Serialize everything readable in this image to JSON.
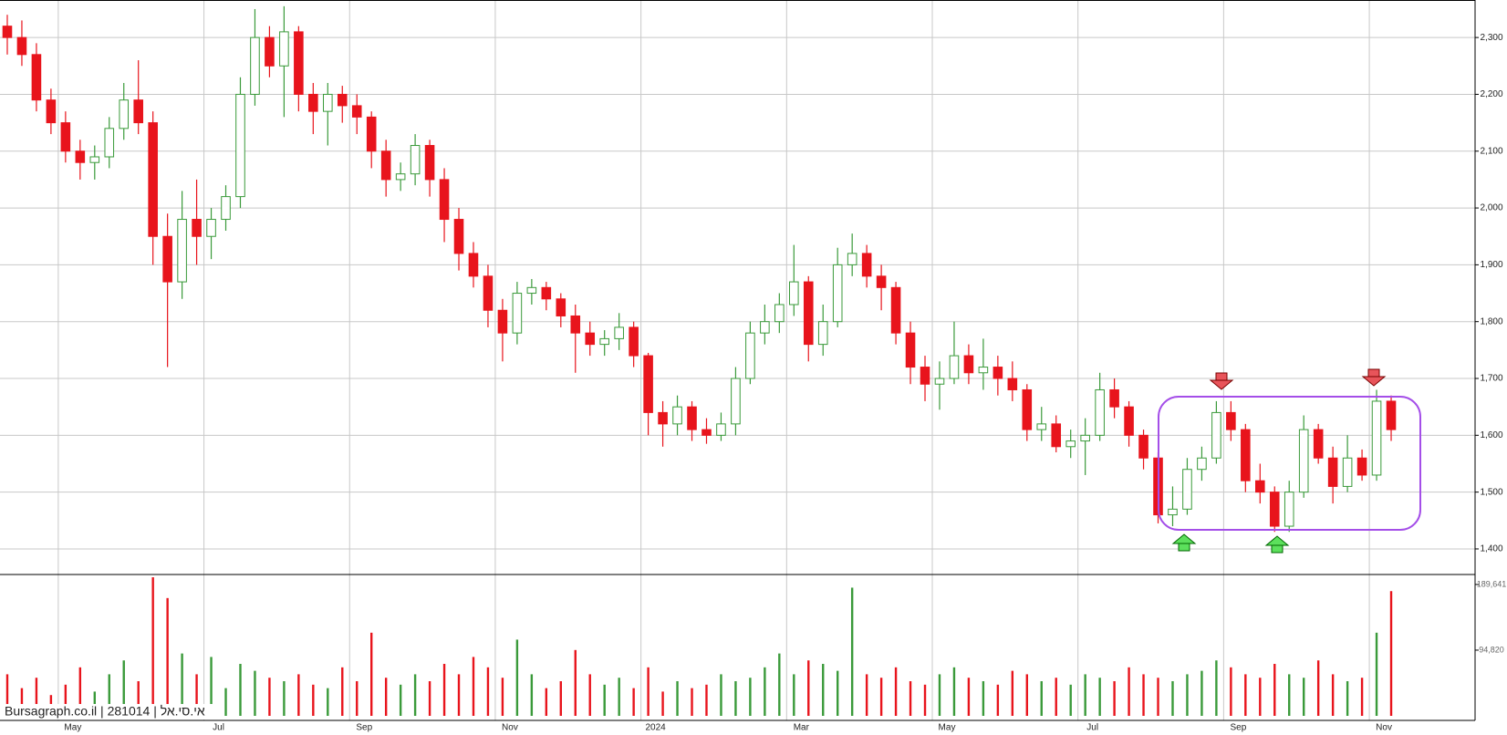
{
  "chart_data": {
    "type": "candlestick",
    "source": "Bursagraph.co.il | 281014 | אי.סי.אל",
    "categories": [
      null,
      null,
      null,
      null,
      "May",
      null,
      null,
      null,
      null,
      null,
      null,
      null,
      null,
      null,
      "Jul",
      null,
      null,
      null,
      null,
      null,
      null,
      null,
      null,
      null,
      "Sep",
      null,
      null,
      null,
      null,
      null,
      null,
      null,
      null,
      null,
      "Nov",
      null,
      null,
      null,
      null,
      null,
      null,
      null,
      null,
      null,
      "2024",
      null,
      null,
      null,
      null,
      null,
      null,
      null,
      null,
      null,
      "Mar",
      null,
      null,
      null,
      null,
      null,
      null,
      null,
      null,
      null,
      "May",
      null,
      null,
      null,
      null,
      null,
      null,
      null,
      null,
      null,
      "Jul",
      null,
      null,
      null,
      null,
      null,
      null,
      null,
      null,
      null,
      "Sep",
      null,
      null,
      null,
      null,
      null,
      null,
      null,
      null,
      null,
      "Nov",
      null
    ],
    "open": [
      2320,
      2300,
      2270,
      2190,
      2150,
      2100,
      2080,
      2090,
      2140,
      2190,
      2150,
      1950,
      1870,
      1980,
      1950,
      1980,
      2020,
      2200,
      2300,
      2250,
      2310,
      2200,
      2170,
      2200,
      2180,
      2160,
      2100,
      2050,
      2060,
      2110,
      2050,
      1980,
      1920,
      1880,
      1820,
      1780,
      1850,
      1860,
      1840,
      1810,
      1780,
      1760,
      1770,
      1790,
      1740,
      1640,
      1620,
      1650,
      1610,
      1600,
      1620,
      1700,
      1780,
      1800,
      1830,
      1870,
      1760,
      1800,
      1900,
      1920,
      1880,
      1860,
      1780,
      1720,
      1690,
      1700,
      1740,
      1710,
      1720,
      1700,
      1680,
      1610,
      1620,
      1580,
      1590,
      1600,
      1680,
      1650,
      1600,
      1560,
      1460,
      1470,
      1540,
      1560,
      1640,
      1610,
      1520,
      1500,
      1440,
      1500,
      1610,
      1560,
      1510,
      1560,
      1530,
      1660
    ],
    "high": [
      2340,
      2330,
      2290,
      2210,
      2170,
      2120,
      2110,
      2160,
      2220,
      2260,
      2170,
      1990,
      2030,
      2050,
      2000,
      2040,
      2230,
      2350,
      2320,
      2355,
      2320,
      2220,
      2220,
      2215,
      2200,
      2170,
      2120,
      2080,
      2130,
      2120,
      2070,
      2000,
      1940,
      1900,
      1840,
      1870,
      1875,
      1870,
      1850,
      1830,
      1800,
      1785,
      1815,
      1800,
      1745,
      1660,
      1670,
      1660,
      1630,
      1640,
      1720,
      1800,
      1830,
      1850,
      1935,
      1880,
      1830,
      1930,
      1955,
      1935,
      1900,
      1870,
      1800,
      1740,
      1730,
      1800,
      1760,
      1770,
      1740,
      1730,
      1690,
      1650,
      1635,
      1610,
      1630,
      1710,
      1700,
      1660,
      1610,
      1570,
      1510,
      1560,
      1580,
      1660,
      1660,
      1620,
      1550,
      1510,
      1520,
      1635,
      1620,
      1580,
      1600,
      1575,
      1680,
      1670
    ],
    "low": [
      2270,
      2250,
      2170,
      2130,
      2080,
      2050,
      2050,
      2070,
      2120,
      2130,
      1900,
      1720,
      1840,
      1900,
      1910,
      1960,
      2000,
      2180,
      2230,
      2160,
      2170,
      2130,
      2110,
      2150,
      2130,
      2070,
      2020,
      2030,
      2040,
      2020,
      1940,
      1890,
      1860,
      1790,
      1730,
      1760,
      1830,
      1820,
      1790,
      1710,
      1740,
      1740,
      1750,
      1720,
      1600,
      1580,
      1600,
      1590,
      1585,
      1590,
      1600,
      1690,
      1760,
      1780,
      1810,
      1730,
      1740,
      1790,
      1880,
      1860,
      1820,
      1760,
      1690,
      1660,
      1645,
      1690,
      1690,
      1680,
      1670,
      1660,
      1590,
      1590,
      1570,
      1560,
      1530,
      1590,
      1630,
      1580,
      1540,
      1445,
      1440,
      1460,
      1520,
      1550,
      1590,
      1500,
      1480,
      1430,
      1430,
      1490,
      1550,
      1480,
      1500,
      1520,
      1520,
      1590
    ],
    "close": [
      2300,
      2270,
      2190,
      2150,
      2100,
      2080,
      2090,
      2140,
      2190,
      2150,
      1950,
      1870,
      1980,
      1950,
      1980,
      2020,
      2200,
      2300,
      2250,
      2310,
      2200,
      2170,
      2200,
      2180,
      2160,
      2100,
      2050,
      2060,
      2110,
      2050,
      1980,
      1920,
      1880,
      1820,
      1780,
      1850,
      1860,
      1840,
      1810,
      1780,
      1760,
      1770,
      1790,
      1740,
      1640,
      1620,
      1650,
      1610,
      1600,
      1620,
      1700,
      1780,
      1800,
      1830,
      1870,
      1760,
      1800,
      1900,
      1920,
      1880,
      1860,
      1780,
      1720,
      1690,
      1700,
      1740,
      1710,
      1720,
      1700,
      1680,
      1610,
      1620,
      1580,
      1590,
      1600,
      1680,
      1650,
      1600,
      1560,
      1460,
      1470,
      1540,
      1560,
      1640,
      1610,
      1520,
      1500,
      1440,
      1500,
      1610,
      1560,
      1510,
      1560,
      1530,
      1660,
      1610
    ],
    "volume": [
      60000,
      40000,
      55000,
      30000,
      45000,
      70000,
      35000,
      60000,
      80000,
      50000,
      200000,
      170000,
      90000,
      60000,
      85000,
      40000,
      75000,
      65000,
      55000,
      50000,
      60000,
      45000,
      40000,
      70000,
      50000,
      120000,
      55000,
      45000,
      60000,
      50000,
      75000,
      60000,
      85000,
      70000,
      55000,
      110000,
      60000,
      40000,
      50000,
      95000,
      60000,
      45000,
      55000,
      40000,
      70000,
      35000,
      50000,
      40000,
      45000,
      60000,
      50000,
      55000,
      70000,
      90000,
      60000,
      80000,
      75000,
      65000,
      185000,
      60000,
      55000,
      70000,
      50000,
      45000,
      60000,
      70000,
      55000,
      50000,
      45000,
      65000,
      60000,
      50000,
      55000,
      45000,
      60000,
      55000,
      50000,
      70000,
      60000,
      55000,
      50000,
      60000,
      65000,
      80000,
      70000,
      60000,
      55000,
      75000,
      60000,
      55000,
      80000,
      60000,
      50000,
      55000,
      120000,
      180000
    ],
    "ylim": [
      1355,
      2366
    ],
    "yticks": [
      {
        "value": 1400,
        "label": "1,400"
      },
      {
        "value": 1500,
        "label": "1,500"
      },
      {
        "value": 1600,
        "label": "1,600"
      },
      {
        "value": 1700,
        "label": "1,700"
      },
      {
        "value": 1800,
        "label": "1,800"
      },
      {
        "value": 1900,
        "label": "1,900"
      },
      {
        "value": 2000,
        "label": "2,000"
      },
      {
        "value": 2100,
        "label": "2,100"
      },
      {
        "value": 2200,
        "label": "2,200"
      },
      {
        "value": 2300,
        "label": "2,300"
      }
    ],
    "volume_lim": [
      0,
      204000
    ],
    "volume_ticks": [
      {
        "value": 94820,
        "label": "94,820"
      },
      {
        "value": 189641,
        "label": "189,641"
      }
    ],
    "up_color": "#3a9a3a",
    "down_color": "#e8141c",
    "grid": true
  }
}
